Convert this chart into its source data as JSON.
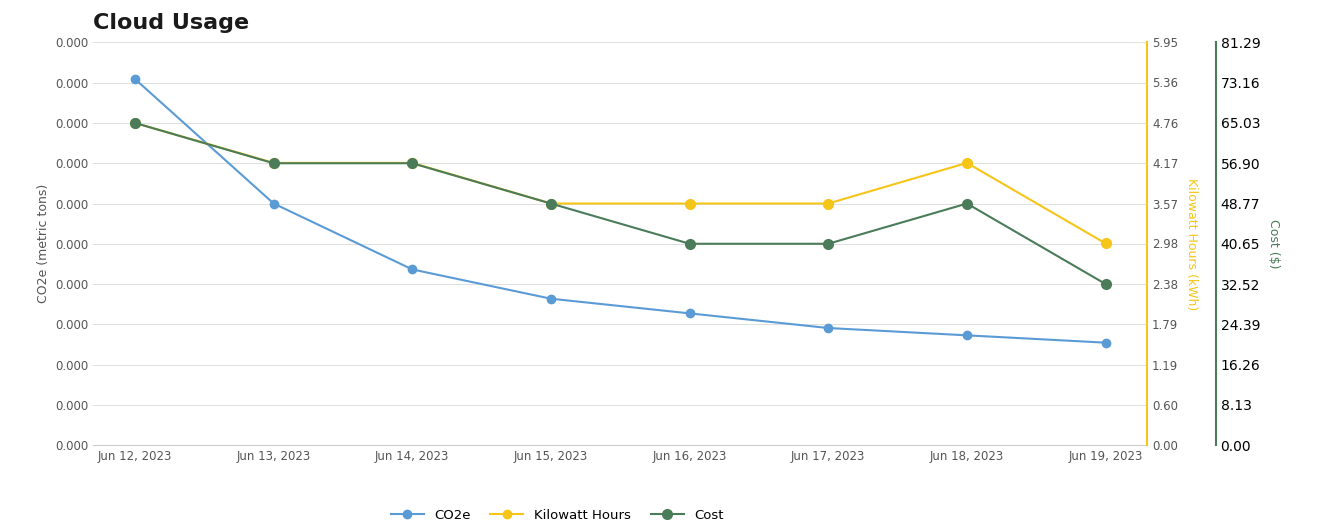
{
  "title": "Cloud Usage",
  "x_labels": [
    "Jun 12, 2023",
    "Jun 13, 2023",
    "Jun 14, 2023",
    "Jun 15, 2023",
    "Jun 16, 2023",
    "Jun 17, 2023",
    "Jun 18, 2023",
    "Jun 19, 2023"
  ],
  "x_values": [
    0,
    1,
    2,
    3,
    4,
    5,
    6,
    7
  ],
  "co2e": [
    5e-05,
    3.3e-05,
    2.4e-05,
    2e-05,
    1.8e-05,
    1.6e-05,
    1.5e-05,
    1.4e-05
  ],
  "kwh": [
    4.76,
    4.17,
    4.17,
    3.57,
    3.57,
    3.57,
    4.17,
    2.98
  ],
  "cost": [
    65.03,
    56.9,
    56.9,
    48.77,
    40.65,
    40.65,
    48.77,
    32.52
  ],
  "kwh_max": 5.95,
  "kwh_ticks": [
    0.0,
    0.6,
    1.19,
    1.79,
    2.38,
    2.98,
    3.57,
    4.17,
    4.76,
    5.36,
    5.95
  ],
  "cost_max": 81.29,
  "cost_ticks": [
    0.0,
    8.13,
    16.26,
    24.39,
    32.52,
    40.65,
    48.77,
    56.9,
    65.03,
    73.16,
    81.29
  ],
  "co2e_max": 5.5e-05,
  "n_yticks": 11,
  "color_co2e": "#5b9bd5",
  "color_kwh": "#f5c518",
  "color_cost": "#4a7c59",
  "ylabel_left": "CO2e (metric tons)",
  "ylabel_right1": "Kilowatt Hours (kWh)",
  "ylabel_right2": "Cost ($)",
  "legend_labels": [
    "CO2e",
    "Kilowatt Hours",
    "Cost"
  ],
  "background_color": "#ffffff",
  "grid_color": "#e0e0e0",
  "title_fontsize": 16,
  "axis_fontsize": 9,
  "tick_fontsize": 8.5
}
